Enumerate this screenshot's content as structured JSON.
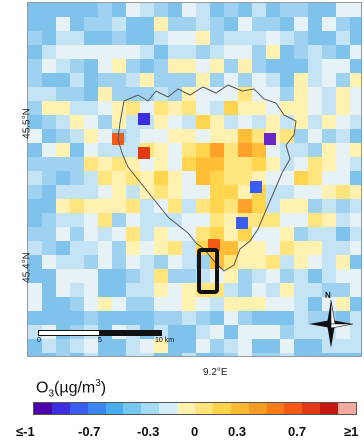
{
  "map": {
    "lat_labels": [
      "45.5°N",
      "45.4°N"
    ],
    "lon_label": "9.2°E",
    "scale_labels": [
      "0",
      "5",
      "10 km"
    ],
    "north_label": "N",
    "icons": [
      "north-arrow-icon",
      "scale-bar-icon",
      "highlight-box-icon"
    ],
    "colors": {
      "boundary": "#555555",
      "highlight": "#111111"
    }
  },
  "legend": {
    "title_main": "O",
    "title_sub": "3",
    "title_unit_pre": "(µg/m",
    "title_unit_sup": "3",
    "title_unit_post": ")",
    "ticks": [
      "≤-1",
      "-0.7",
      "-0.3",
      "0",
      "0.3",
      "0.7",
      "≥1"
    ],
    "colors": [
      "#4b00a8",
      "#3d2fe0",
      "#3a5cf0",
      "#3a86f0",
      "#49aef0",
      "#77c8f0",
      "#a6dcf2",
      "#d3eef6",
      "#fff1b0",
      "#ffe47a",
      "#ffd24a",
      "#ffb830",
      "#ff9a22",
      "#ff7a1a",
      "#f45a14",
      "#e03a12",
      "#c41a10",
      "#f7a9a0"
    ]
  }
}
